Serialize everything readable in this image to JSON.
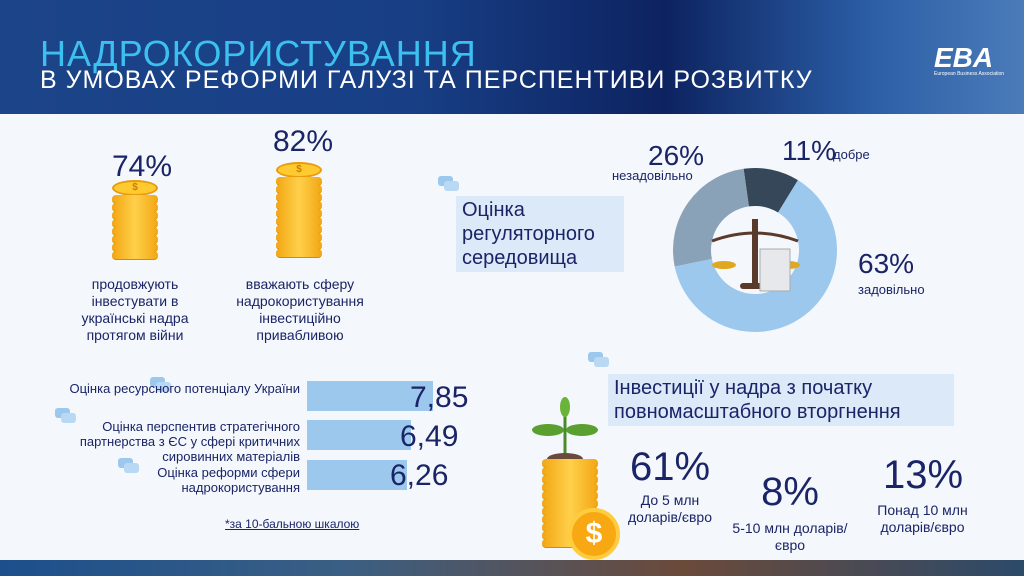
{
  "header": {
    "title": "НАДРОКОРИСТУВАННЯ",
    "subtitle": "В УМОВАХ РЕФОРМИ ГАЛУЗІ ТА ПЕРСПЕНТИВИ РОЗВИТКУ",
    "logo": "EBA",
    "logo_sub": "European Business Association"
  },
  "stats": [
    {
      "value": "74%",
      "caption": "продовжують інвестувати в українські надра протягом війни"
    },
    {
      "value": "82%",
      "caption": "вважають сферу надрокористування інвестиційно привабливою"
    }
  ],
  "regulatory": {
    "title": "Оцінка регуляторного середовища",
    "slices": [
      {
        "label": "добре",
        "value": 11,
        "text": "11%",
        "color": "#364759"
      },
      {
        "label": "задовільно",
        "value": 63,
        "text": "63%",
        "color": "#9cc8ee"
      },
      {
        "label": "незадовільно",
        "value": 26,
        "text": "26%",
        "color": "#8aa2b8"
      }
    ]
  },
  "ratings": {
    "items": [
      {
        "label": "Оцінка ресурсного потенціалу України",
        "value": 7.85,
        "text": "7,85"
      },
      {
        "label": "Оцінка перспентив стратегічного партнерства з ЄС у сфері критичних сировинних матеріалів",
        "value": 6.49,
        "text": "6,49"
      },
      {
        "label": "Оцінка реформи сфери надрокористування",
        "value": 6.26,
        "text": "6,26"
      }
    ],
    "footnote": "*за 10-бальною шкалою",
    "scale_max": 10
  },
  "investments": {
    "title": "Інвестиції у надра з початку повномасштабного вторгнення",
    "items": [
      {
        "value": "61%",
        "caption": "До 5 млн доларів/євро"
      },
      {
        "value": "8%",
        "caption": "5-10 млн доларів/євро"
      },
      {
        "value": "13%",
        "caption": "Понад 10 млн доларів/євро"
      }
    ]
  },
  "chart_data": {
    "type": "pie",
    "title": "Оцінка регуляторного середовища",
    "categories": [
      "добре",
      "задовільно",
      "незадовільно"
    ],
    "values": [
      11,
      63,
      26
    ]
  }
}
